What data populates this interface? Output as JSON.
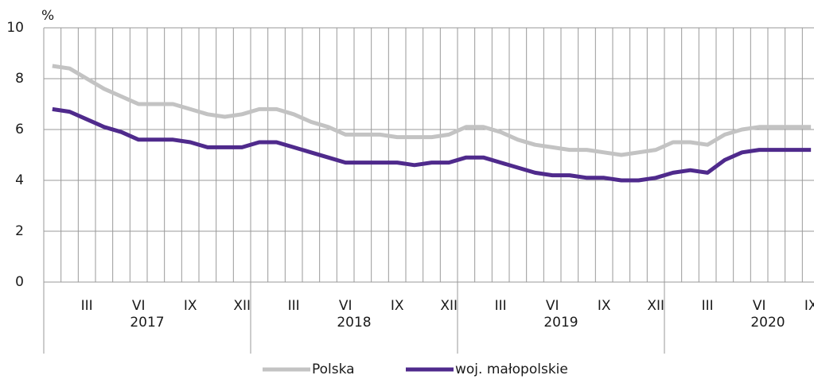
{
  "chart_data": {
    "type": "line",
    "y_label": "%",
    "categories": [
      null,
      null,
      "III",
      null,
      null,
      "VI",
      null,
      null,
      "IX",
      null,
      null,
      "XII",
      null,
      null,
      "III",
      null,
      null,
      "VI",
      null,
      null,
      "IX",
      null,
      null,
      "XII",
      null,
      null,
      "III",
      null,
      null,
      "VI",
      null,
      null,
      "IX",
      null,
      null,
      "XII",
      null,
      null,
      "III",
      null,
      null,
      "VI",
      null,
      null,
      "IX"
    ],
    "years": [
      "2017",
      "2018",
      "2019",
      "2020"
    ],
    "series": [
      {
        "name": "Polska",
        "color": "#c3c3c3",
        "values": [
          8.5,
          8.4,
          8.0,
          7.6,
          7.3,
          7.0,
          7.0,
          7.0,
          6.8,
          6.6,
          6.5,
          6.6,
          6.8,
          6.8,
          6.6,
          6.3,
          6.1,
          5.8,
          5.8,
          5.8,
          5.7,
          5.7,
          5.7,
          5.8,
          6.1,
          6.1,
          5.9,
          5.6,
          5.4,
          5.3,
          5.2,
          5.2,
          5.1,
          5.0,
          5.1,
          5.2,
          5.5,
          5.5,
          5.4,
          5.8,
          6.0,
          6.1,
          6.1,
          6.1,
          6.1
        ]
      },
      {
        "name": "woj. małopolskie",
        "color": "#4f2a8c",
        "values": [
          6.8,
          6.7,
          6.4,
          6.1,
          5.9,
          5.6,
          5.6,
          5.6,
          5.5,
          5.3,
          5.3,
          5.3,
          5.5,
          5.5,
          5.3,
          5.1,
          4.9,
          4.7,
          4.7,
          4.7,
          4.7,
          4.6,
          4.7,
          4.7,
          4.9,
          4.9,
          4.7,
          4.5,
          4.3,
          4.2,
          4.2,
          4.1,
          4.1,
          4.0,
          4.0,
          4.1,
          4.3,
          4.4,
          4.3,
          4.8,
          5.1,
          5.2,
          5.2,
          5.2,
          5.2
        ]
      }
    ],
    "ylim": [
      0,
      10
    ],
    "yticks": [
      0,
      2,
      4,
      6,
      8,
      10
    ],
    "grid": true
  }
}
